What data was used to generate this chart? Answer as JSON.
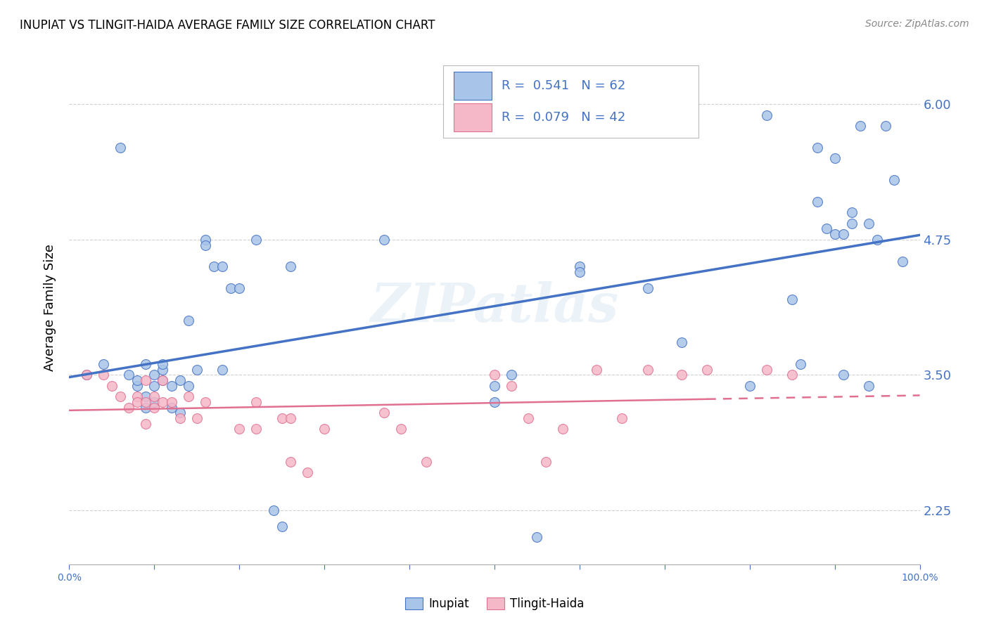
{
  "title": "INUPIAT VS TLINGIT-HAIDA AVERAGE FAMILY SIZE CORRELATION CHART",
  "source": "Source: ZipAtlas.com",
  "ylabel": "Average Family Size",
  "yticks": [
    2.25,
    3.5,
    4.75,
    6.0
  ],
  "xlim": [
    0.0,
    1.0
  ],
  "ylim": [
    1.75,
    6.5
  ],
  "legend_r_inupiat": "R = 0.541",
  "legend_n_inupiat": "N = 62",
  "legend_r_tlingit": "R = 0.079",
  "legend_n_tlingit": "N = 42",
  "inupiat_color": "#a8c4e8",
  "tlingit_color": "#f5b8c8",
  "trend_blue": "#4472c4",
  "trend_pink": "#e07090",
  "watermark": "ZIPatlas",
  "background": "#ffffff",
  "inupiat_x": [
    0.02,
    0.04,
    0.06,
    0.07,
    0.08,
    0.08,
    0.09,
    0.09,
    0.09,
    0.1,
    0.1,
    0.1,
    0.11,
    0.11,
    0.11,
    0.12,
    0.12,
    0.13,
    0.13,
    0.14,
    0.14,
    0.15,
    0.16,
    0.16,
    0.17,
    0.18,
    0.18,
    0.19,
    0.2,
    0.22,
    0.24,
    0.25,
    0.26,
    0.37,
    0.5,
    0.5,
    0.52,
    0.55,
    0.6,
    0.6,
    0.68,
    0.72,
    0.8,
    0.82,
    0.85,
    0.86,
    0.88,
    0.88,
    0.89,
    0.9,
    0.9,
    0.91,
    0.91,
    0.92,
    0.92,
    0.93,
    0.94,
    0.94,
    0.95,
    0.96,
    0.97,
    0.98
  ],
  "inupiat_y": [
    3.5,
    3.6,
    5.6,
    3.5,
    3.4,
    3.45,
    3.3,
    3.6,
    3.2,
    3.5,
    3.25,
    3.4,
    3.55,
    3.45,
    3.6,
    3.4,
    3.2,
    3.45,
    3.15,
    4.0,
    3.4,
    3.55,
    4.75,
    4.7,
    4.5,
    3.55,
    4.5,
    4.3,
    4.3,
    4.75,
    2.25,
    2.1,
    4.5,
    4.75,
    3.4,
    3.25,
    3.5,
    2.0,
    4.5,
    4.45,
    4.3,
    3.8,
    3.4,
    5.9,
    4.2,
    3.6,
    5.6,
    5.1,
    4.85,
    5.5,
    4.8,
    4.8,
    3.5,
    5.0,
    4.9,
    5.8,
    4.9,
    3.4,
    4.75,
    5.8,
    5.3,
    4.55
  ],
  "tlingit_x": [
    0.02,
    0.04,
    0.05,
    0.06,
    0.07,
    0.08,
    0.08,
    0.09,
    0.09,
    0.09,
    0.1,
    0.1,
    0.11,
    0.11,
    0.12,
    0.13,
    0.14,
    0.15,
    0.16,
    0.2,
    0.22,
    0.22,
    0.25,
    0.26,
    0.26,
    0.28,
    0.3,
    0.37,
    0.39,
    0.42,
    0.5,
    0.52,
    0.54,
    0.56,
    0.58,
    0.62,
    0.65,
    0.68,
    0.72,
    0.75,
    0.82,
    0.85
  ],
  "tlingit_y": [
    3.5,
    3.5,
    3.4,
    3.3,
    3.2,
    3.3,
    3.25,
    3.45,
    3.25,
    3.05,
    3.3,
    3.2,
    3.45,
    3.25,
    3.25,
    3.1,
    3.3,
    3.1,
    3.25,
    3.0,
    3.25,
    3.0,
    3.1,
    3.1,
    2.7,
    2.6,
    3.0,
    3.15,
    3.0,
    2.7,
    3.5,
    3.4,
    3.1,
    2.7,
    3.0,
    3.55,
    3.1,
    3.55,
    3.5,
    3.55,
    3.55,
    3.5
  ]
}
